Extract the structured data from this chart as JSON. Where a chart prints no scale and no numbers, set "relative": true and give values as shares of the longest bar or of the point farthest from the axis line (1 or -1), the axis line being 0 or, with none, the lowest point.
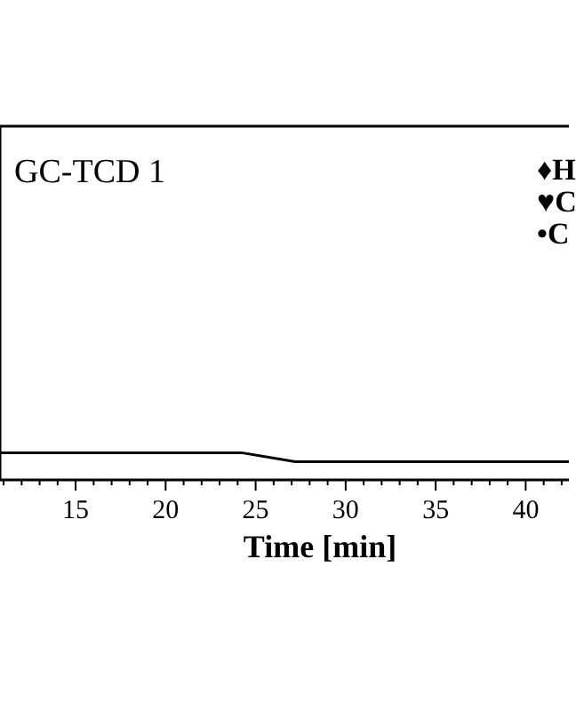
{
  "chart_data": {
    "type": "line",
    "title": "GC-TCD 1",
    "xlabel": "Time [min]",
    "relative": true,
    "x": [
      10.8,
      24.2,
      27.2,
      42.4
    ],
    "series": [
      {
        "color": "#000000",
        "values": [
          1,
          1,
          0.67,
          0.67
        ]
      }
    ],
    "xlim": [
      10.8,
      42.4
    ],
    "xticks": [
      {
        "value": 11,
        "label": null
      },
      {
        "value": 12,
        "label": null
      },
      {
        "value": 13,
        "label": null
      },
      {
        "value": 14,
        "label": null
      },
      15,
      {
        "value": 16,
        "label": null
      },
      {
        "value": 17,
        "label": null
      },
      {
        "value": 18,
        "label": null
      },
      {
        "value": 19,
        "label": null
      },
      20,
      {
        "value": 21,
        "label": null
      },
      {
        "value": 22,
        "label": null
      },
      {
        "value": 23,
        "label": null
      },
      {
        "value": 24,
        "label": null
      },
      25,
      {
        "value": 26,
        "label": null
      },
      {
        "value": 27,
        "label": null
      },
      {
        "value": 28,
        "label": null
      },
      {
        "value": 29,
        "label": null
      },
      30,
      {
        "value": 31,
        "label": null
      },
      {
        "value": 32,
        "label": null
      },
      {
        "value": 33,
        "label": null
      },
      {
        "value": 34,
        "label": null
      },
      35,
      {
        "value": 36,
        "label": null
      },
      {
        "value": 37,
        "label": null
      },
      {
        "value": 38,
        "label": null
      },
      {
        "value": 39,
        "label": null
      },
      40,
      {
        "value": 41,
        "label": null
      },
      {
        "value": 42,
        "label": null
      }
    ],
    "annotations": [
      "♦H",
      "♥C",
      "•C"
    ],
    "grid": false,
    "legend": false,
    "marker": "none",
    "line_style": "solid"
  }
}
